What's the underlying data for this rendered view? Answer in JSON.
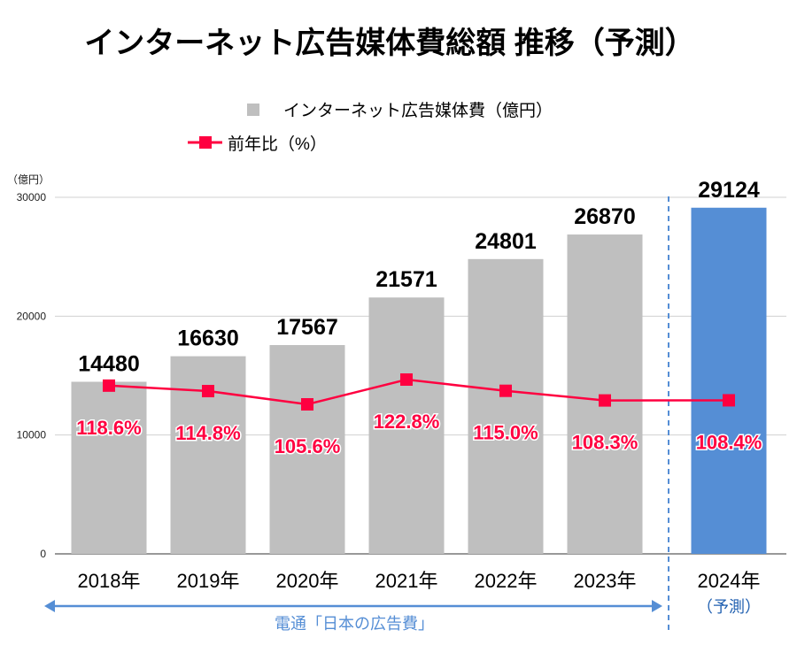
{
  "chart_data": {
    "type": "bar",
    "title": "インターネット広告媒体費総額 推移（予測）",
    "ylabel": "（億円）",
    "ylim": [
      0,
      30000
    ],
    "yticks": [
      0,
      10000,
      20000,
      30000
    ],
    "grid": true,
    "legend_position": "top-center",
    "categories": [
      "2018年",
      "2019年",
      "2020年",
      "2021年",
      "2022年",
      "2023年",
      "2024年"
    ],
    "forecast_label": "（予測）",
    "series": [
      {
        "name": "インターネット広告媒体費（億円）",
        "type": "bar",
        "values": [
          14480,
          16630,
          17567,
          21571,
          24801,
          26870,
          29124
        ],
        "color": "#bfbfbf",
        "forecast_color": "#558ed5"
      },
      {
        "name": "前年比（%）",
        "type": "line",
        "values": [
          118.6,
          114.8,
          105.6,
          122.8,
          115.0,
          108.3,
          108.4
        ],
        "labels": [
          "118.6%",
          "114.8%",
          "105.6%",
          "122.8%",
          "115.0%",
          "108.3%",
          "108.4%"
        ],
        "color": "#ff0040"
      }
    ],
    "source_annotation": "電通「日本の広告費」",
    "annotation_color": "#558ed5"
  }
}
